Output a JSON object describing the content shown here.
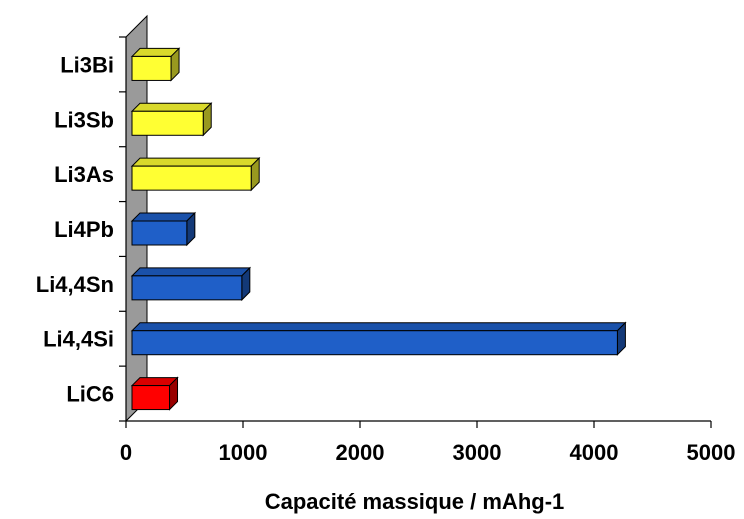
{
  "chart_data": {
    "type": "bar",
    "orientation": "horizontal",
    "style": "3d",
    "categories": [
      "Li3Bi",
      "Li3Sb",
      "Li3As",
      "Li4Pb",
      "Li4,4Sn",
      "Li4,4Si",
      "LiC6"
    ],
    "values": [
      385,
      660,
      1070,
      520,
      990,
      4200,
      372
    ],
    "bar_colors": [
      "#ffff33",
      "#ffff33",
      "#ffff33",
      "#1f5fc8",
      "#1f5fc8",
      "#1f5fc8",
      "#ff0000"
    ],
    "xlabel": "Capacité massique / mAhg-1",
    "ylabel": "",
    "xlim": [
      0,
      5000
    ],
    "xticks": [
      "0",
      "1000",
      "2000",
      "3000",
      "4000",
      "5000"
    ],
    "grid": false,
    "legend": "none"
  }
}
